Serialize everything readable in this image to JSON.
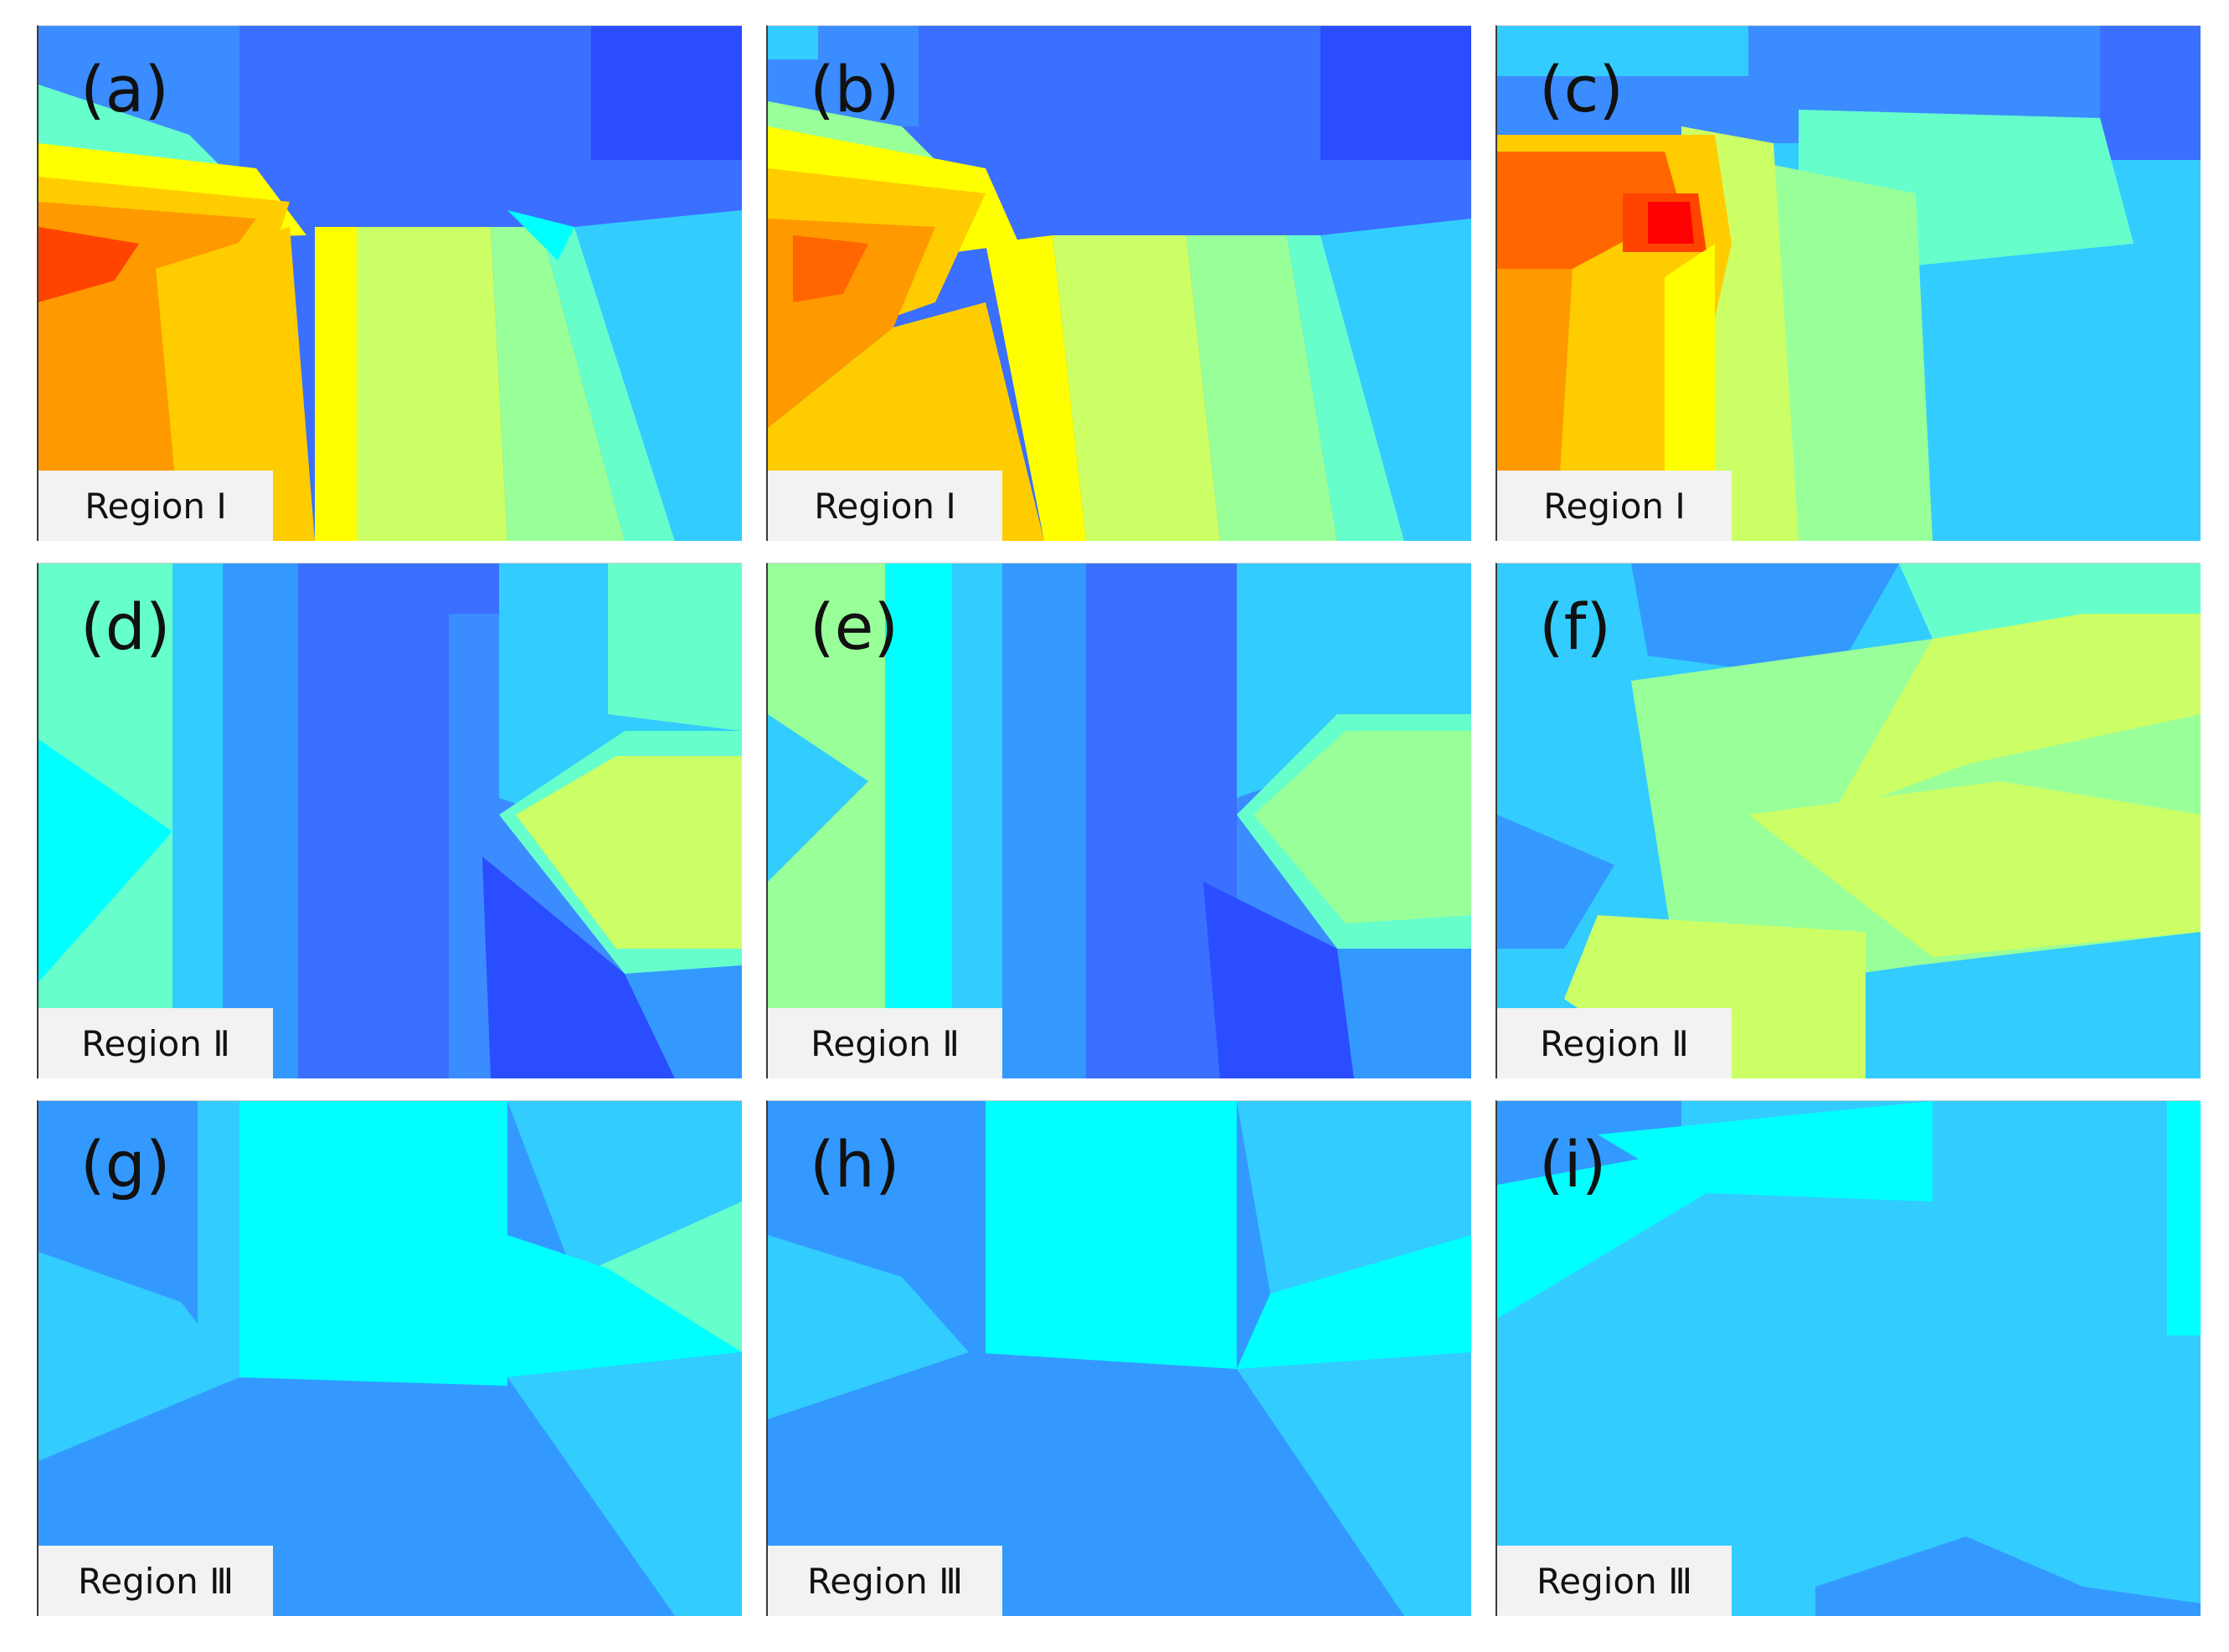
{
  "colors": {
    "blue_deep": "#2a4dff",
    "blue": "#3a6fff",
    "blue_medium": "#3b8cff",
    "light_blue": "#3399ff",
    "sky": "#33ccff",
    "cyan": "#00ffff",
    "aqua": "#66ffcc",
    "mint": "#99ff99",
    "lime": "#ccff66",
    "yellow": "#ffff00",
    "gold": "#ffcc00",
    "orange": "#ff9900",
    "dark_orange": "#ff6600",
    "red_orange": "#ff4400",
    "red": "#ff0000",
    "label_background": "#f2f2f2"
  },
  "panels": [
    {
      "letter": "(a)",
      "region": "Region Ⅰ"
    },
    {
      "letter": "(b)",
      "region": "Region Ⅰ"
    },
    {
      "letter": "(c)",
      "region": "Region Ⅰ"
    },
    {
      "letter": "(d)",
      "region": "Region Ⅱ"
    },
    {
      "letter": "(e)",
      "region": "Region Ⅱ"
    },
    {
      "letter": "(f)",
      "region": "Region Ⅱ"
    },
    {
      "letter": "(g)",
      "region": "Region Ⅲ"
    },
    {
      "letter": "(h)",
      "region": "Region Ⅲ"
    },
    {
      "letter": "(i)",
      "region": "Region Ⅲ"
    }
  ]
}
